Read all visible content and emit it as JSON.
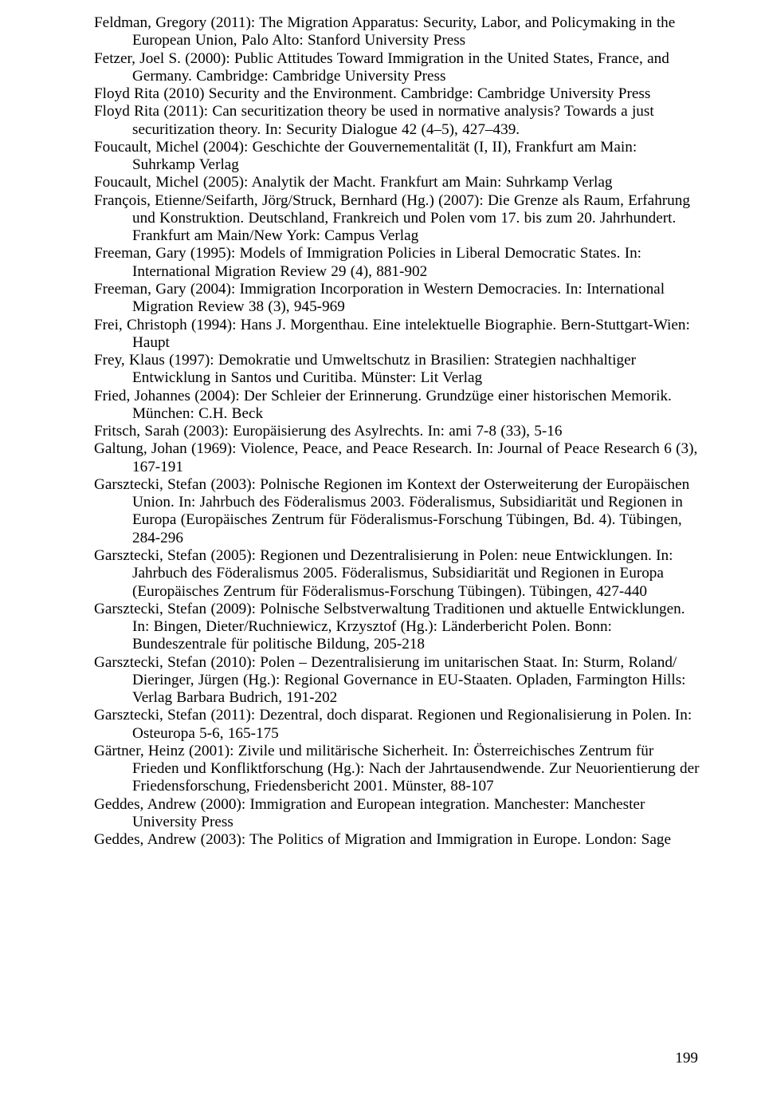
{
  "pageNumber": "199",
  "references": [
    "Feldman, Gregory (2011): The Migration Apparatus: Security, Labor, and Policymaking in the European Union, Palo Alto: Stanford University Press",
    "Fetzer, Joel S. (2000): Public Attitudes Toward Immigration in the United States, France, and Germany. Cambridge: Cambridge University Press",
    "Floyd Rita (2010) Security and the Environment. Cambridge: Cambridge University Press",
    "Floyd Rita (2011): Can securitization theory be used in normative analysis? Towards a just securitization theory. In: Security Dialogue 42 (4–5), 427–439.",
    "Foucault, Michel (2004): Geschichte der Gouvernementalität (I, II), Frankfurt am Main: Suhrkamp Verlag",
    "Foucault, Michel (2005): Analytik der Macht. Frankfurt am Main: Suhrkamp Verlag",
    "François, Etienne/Seifarth, Jörg/Struck, Bernhard (Hg.) (2007): Die Grenze als Raum, Erfahrung und Konstruktion. Deutschland, Frankreich und Polen vom 17. bis zum 20. Jahrhundert. Frankfurt am Main/New York: Campus Verlag",
    "Freeman, Gary (1995): Models of Immigration Policies in Liberal Democratic States. In: International Migration Review 29 (4), 881-902",
    "Freeman, Gary (2004): Immigration Incorporation in Western Democracies. In: International Migration Review 38 (3), 945-969",
    "Frei, Christoph (1994): Hans J. Morgenthau. Eine intelektuelle Biographie. Bern-Stuttgart-Wien: Haupt",
    "Frey, Klaus (1997): Demokratie und Umweltschutz in Brasilien: Strategien nachhaltiger Entwicklung in Santos und Curitiba. Münster: Lit Verlag",
    "Fried, Johannes (2004): Der Schleier der Erinnerung. Grundzüge einer historischen Memorik. München: C.H. Beck",
    "Fritsch, Sarah (2003): Europäisierung des Asylrechts. In: ami 7-8 (33), 5-16",
    "Galtung, Johan (1969): Violence, Peace, and Peace Research. In: Journal of Peace Research 6 (3), 167-191",
    "Garsztecki, Stefan (2003): Polnische Regionen im Kontext der Osterweiterung der Europäischen Union. In: Jahrbuch des Föderalismus 2003. Föderalismus, Subsidiarität und Regionen in Europa (Europäisches Zentrum für Föderalismus-Forschung Tübingen, Bd. 4). Tübingen, 284-296",
    "Garsztecki, Stefan (2005): Regionen und Dezentralisierung in Polen: neue Entwicklungen. In: Jahrbuch des Föderalismus 2005. Föderalismus, Subsidiarität und Regionen in Europa (Europäisches Zentrum für Föderalismus-Forschung Tübingen). Tübingen, 427-440",
    "Garsztecki, Stefan (2009): Polnische Selbstverwaltung Traditionen und aktuelle Entwicklungen. In: Bingen, Dieter/Ruchniewicz, Krzysztof (Hg.): Länderbericht Polen. Bonn: Bundeszentrale für politische Bildung, 205-218",
    "Garsztecki, Stefan (2010): Polen – Dezentralisierung im unitarischen Staat. In: Sturm, Roland/ Dieringer, Jürgen (Hg.): Regional Governance in EU-Staaten. Opladen, Farmington Hills: Verlag Barbara Budrich, 191-202",
    "Garsztecki, Stefan (2011): Dezentral, doch disparat. Regionen und Regionalisierung in Polen. In: Osteuropa 5-6, 165-175",
    "Gärtner, Heinz (2001): Zivile und militärische Sicherheit. In: Österreichisches Zentrum für Frieden und Konfliktforschung (Hg.): Nach der Jahrtausendwende. Zur Neuorientierung der Friedensforschung, Friedensbericht 2001. Münster, 88-107",
    "Geddes, Andrew (2000): Immigration and European integration. Manchester: Manchester University Press",
    "Geddes, Andrew (2003): The Politics of Migration and Immigration in Europe. London: Sage"
  ]
}
